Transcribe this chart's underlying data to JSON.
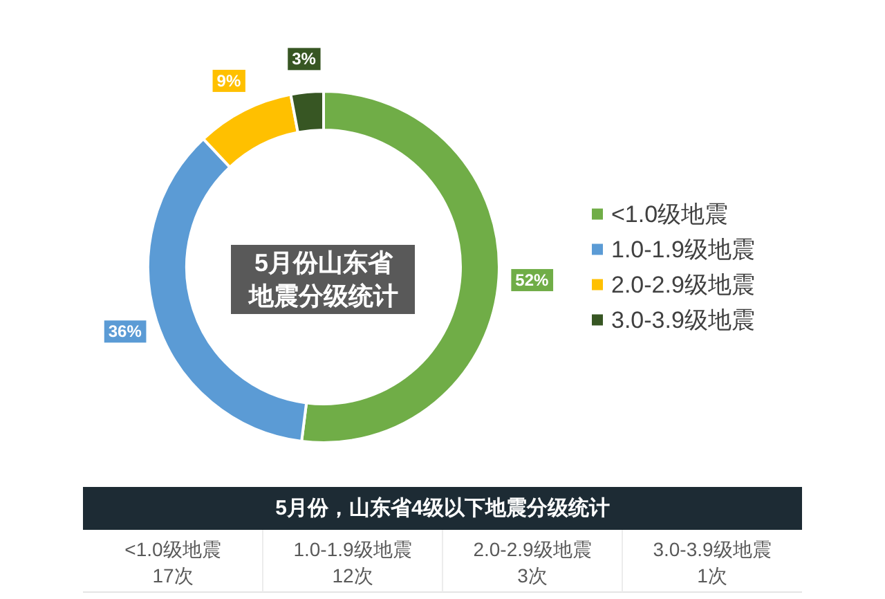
{
  "chart_data": {
    "type": "donut",
    "title": "5月份山东省地震分级统计",
    "categories": [
      "<1.0级地震",
      "1.0-1.9级地震",
      "2.0-2.9级地震",
      "3.0-3.9级地震"
    ],
    "values": [
      52,
      36,
      9,
      3
    ],
    "colors": [
      "#70ad47",
      "#5b9bd5",
      "#ffc000",
      "#375623"
    ],
    "value_labels": [
      "52%",
      "36%",
      "9%",
      "3%"
    ],
    "legend": "right",
    "annotations": [
      "5月份，山东省4级以下地震分级统计",
      "17次",
      "12次",
      "3次",
      "1次"
    ]
  }
}
